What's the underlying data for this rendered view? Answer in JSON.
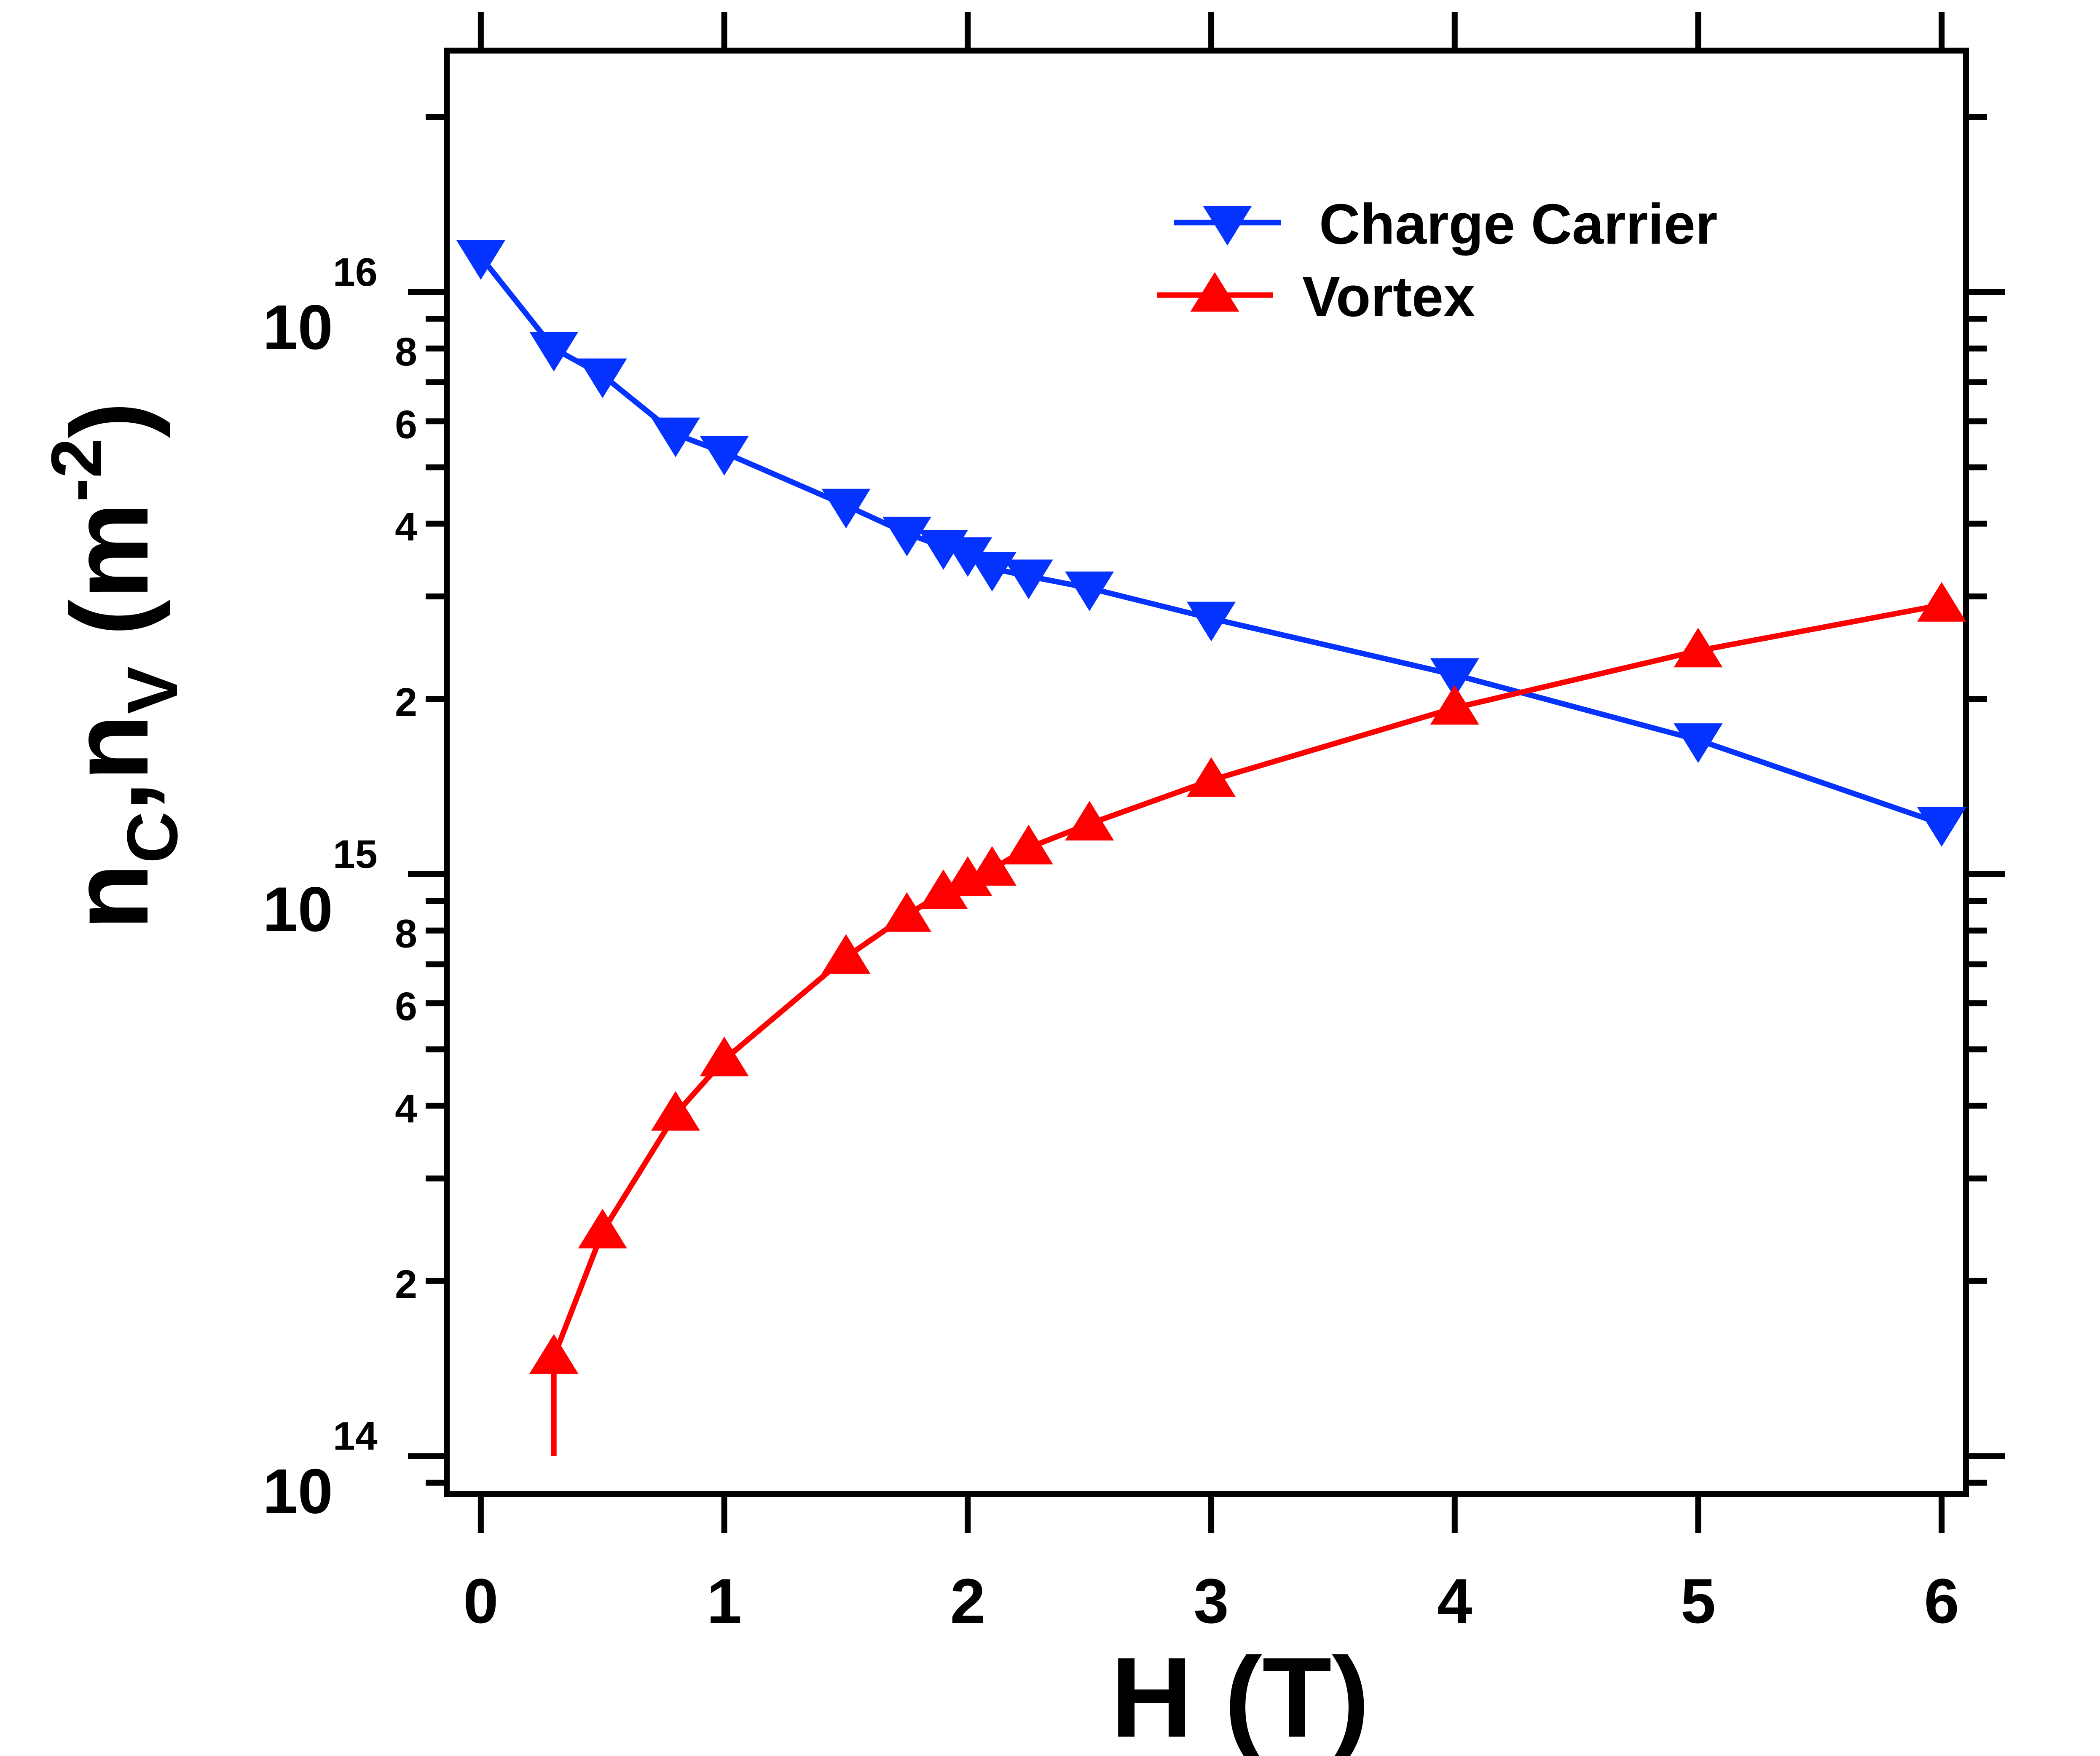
{
  "chart_data": {
    "type": "line",
    "xlabel": "H (T)",
    "ylabel": {
      "base": "n",
      "sub1": "C",
      "sep": ",",
      "sub2": "V",
      "unit_open": " (m",
      "unit_exp": "-2",
      "unit_close": ")"
    },
    "x_ticks": [
      {
        "value": 0,
        "label": "0"
      },
      {
        "value": 1,
        "label": "1"
      },
      {
        "value": 2,
        "label": "2"
      },
      {
        "value": 3,
        "label": "3"
      },
      {
        "value": 4,
        "label": "4"
      },
      {
        "value": 5,
        "label": "5"
      },
      {
        "value": 6,
        "label": "6"
      }
    ],
    "xlim": [
      -0.14,
      6.1
    ],
    "ylim": [
      86000000000000.0,
      2.6e+16
    ],
    "yscale": "log",
    "y_major_ticks": [
      {
        "value": 100000000000000.0,
        "base": "10",
        "exp": "14"
      },
      {
        "value": 1000000000000000.0,
        "base": "10",
        "exp": "15"
      },
      {
        "value": 1e+16,
        "base": "10",
        "exp": "16"
      }
    ],
    "y_minor_labeled": [
      {
        "value": 200000000000000.0,
        "label": "2"
      },
      {
        "value": 400000000000000.0,
        "label": "4"
      },
      {
        "value": 600000000000000.0,
        "label": "6"
      },
      {
        "value": 800000000000000.0,
        "label": "8"
      },
      {
        "value": 2000000000000000.0,
        "label": "2"
      },
      {
        "value": 4000000000000000.0,
        "label": "4"
      },
      {
        "value": 6000000000000000.0,
        "label": "6"
      },
      {
        "value": 8000000000000000.0,
        "label": "8"
      }
    ],
    "grid": false,
    "legend_position": "top-right",
    "series": [
      {
        "name": "Charge Carrier",
        "color": "#0433ff",
        "marker": "triangle-down",
        "x": [
          0,
          0.3,
          0.5,
          0.8,
          1.0,
          1.5,
          1.75,
          1.9,
          2.0,
          2.1,
          2.25,
          2.5,
          3.0,
          4.0,
          5.0,
          6.0
        ],
        "y": [
          1.15e+16,
          8000000000000000.0,
          7200000000000000.0,
          5700000000000000.0,
          5300000000000000.0,
          4300000000000000.0,
          3850000000000000.0,
          3650000000000000.0,
          3550000000000000.0,
          3350000000000000.0,
          3250000000000000.0,
          3100000000000000.0,
          2750000000000000.0,
          2200000000000000.0,
          1700000000000000.0,
          1220000000000000.0
        ]
      },
      {
        "name": "Vortex",
        "color": "#ff0000",
        "marker": "triangle-up",
        "x": [
          0.3,
          0.5,
          0.8,
          1.0,
          1.5,
          1.75,
          1.9,
          2.0,
          2.1,
          2.25,
          2.5,
          3.0,
          4.0,
          5.0,
          6.0
        ],
        "y": [
          148000000000000.0,
          243000000000000.0,
          387000000000000.0,
          480000000000000.0,
          720000000000000.0,
          850000000000000.0,
          930000000000000.0,
          980000000000000.0,
          1020000000000000.0,
          1110000000000000.0,
          1220000000000000.0,
          1450000000000000.0,
          1930000000000000.0,
          2420000000000000.0,
          2900000000000000.0
        ],
        "drop_line": {
          "x": 0.3,
          "to_y": 100000000000000.0
        }
      }
    ]
  }
}
